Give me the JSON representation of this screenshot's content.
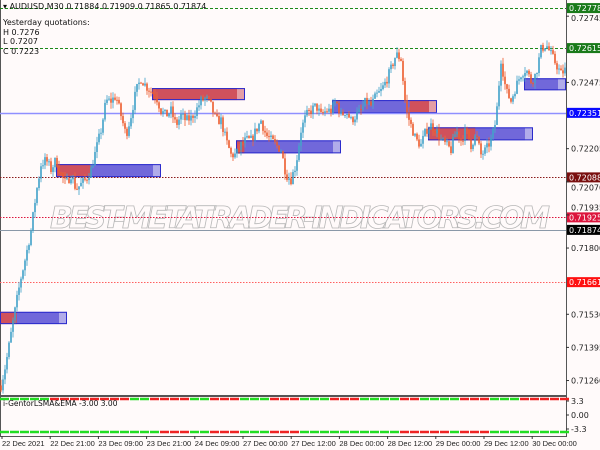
{
  "header": {
    "symbol": "AUDUSD,M30",
    "ohlc": "0.71884 0.71909 0.71865 0.71874"
  },
  "yesterday": {
    "title": "Yesterday quotations:",
    "h": "H 0.7276",
    "l": "L 0.7207",
    "c": "C 0.7223"
  },
  "watermark": "BEST-METATRADER-INDICATORS.COM",
  "colors": {
    "background": "#fffafa",
    "bull": "#3fa0c8",
    "bear": "#ec5a2c",
    "zone_red": "#d84040",
    "zone_blue": "#4b3fd0",
    "ind_up": "#22dd22",
    "ind_down": "#ee2222"
  },
  "chart_data": {
    "type": "candlestick",
    "timeframe": "M30",
    "ylim": [
      0.71201,
      0.72811
    ],
    "y_ticks": [
      "0.72745",
      "0.72475",
      "0.72205",
      "0.72070",
      "0.71935",
      "0.71800",
      "0.71530",
      "0.71395",
      "0.71260"
    ],
    "x_ticks": [
      "22 Dec 2021",
      "22 Dec 21:00",
      "23 Dec 09:00",
      "23 Dec 21:00",
      "24 Dec 09:00",
      "27 Dec 00:00",
      "27 Dec 12:00",
      "28 Dec 00:00",
      "28 Dec 12:00",
      "29 Dec 00:00",
      "29 Dec 12:00",
      "30 Dec 00:00"
    ],
    "bar_count": 283,
    "close_path": [
      0.7124,
      0.7133,
      0.7145,
      0.7157,
      0.7168,
      0.7177,
      0.7187,
      0.7202,
      0.7214,
      0.7216,
      0.7212,
      0.7216,
      0.721,
      0.7206,
      0.721,
      0.7204,
      0.7206,
      0.7208,
      0.7212,
      0.722,
      0.7228,
      0.724,
      0.724,
      0.7242,
      0.7234,
      0.7226,
      0.7234,
      0.7244,
      0.7249,
      0.7246,
      0.7244,
      0.7242,
      0.7236,
      0.7234,
      0.7236,
      0.723,
      0.7234,
      0.7232,
      0.7233,
      0.7236,
      0.724,
      0.7241,
      0.7238,
      0.7232,
      0.7232,
      0.7224,
      0.7218,
      0.7218,
      0.7222,
      0.7224,
      0.7224,
      0.7228,
      0.7232,
      0.7226,
      0.7224,
      0.7222,
      0.722,
      0.721,
      0.7208,
      0.7214,
      0.7228,
      0.7234,
      0.7236,
      0.7238,
      0.7234,
      0.7236,
      0.7236,
      0.724,
      0.7234,
      0.7236,
      0.7232,
      0.7234,
      0.7236,
      0.724,
      0.7238,
      0.7242,
      0.7244,
      0.7248,
      0.7253,
      0.7259,
      0.7257,
      0.7236,
      0.723,
      0.7224,
      0.7222,
      0.7228,
      0.723,
      0.7228,
      0.7224,
      0.7222,
      0.722,
      0.7228,
      0.7224,
      0.7228,
      0.7222,
      0.7226,
      0.7218,
      0.722,
      0.7224,
      0.7232,
      0.7257,
      0.7244,
      0.724,
      0.7246,
      0.7251,
      0.7253,
      0.7248,
      0.7251,
      0.7261,
      0.7263,
      0.7259,
      0.7255,
      0.7251,
      0.7253
    ],
    "levels": [
      {
        "price": "0.72778",
        "style": "dashed",
        "color": "#1a8a1a",
        "label_bg": "#1a7a1a"
      },
      {
        "price": "0.72615",
        "style": "dashed",
        "color": "#1a8a1a",
        "label_bg": "#1a7a1a"
      },
      {
        "price": "0.72351",
        "style": "solid",
        "color": "#8f8fff",
        "label_bg": "#0a0aff"
      },
      {
        "price": "0.72088",
        "style": "dotted",
        "color": "#8b1a1a",
        "label_bg": "#7a0f0f"
      },
      {
        "price": "0.71925",
        "style": "dotted",
        "color": "#dc143c",
        "label_bg": "#dc143c"
      },
      {
        "price": "0.71874",
        "style": "solid",
        "color": "#8a98a8",
        "label_bg": "#000000"
      },
      {
        "price": "0.71661",
        "style": "dotted",
        "color": "#ff6060",
        "label_bg": "#ff1010"
      }
    ],
    "zones": [
      {
        "from_bar": 0,
        "to_bar": 33,
        "high": 0.7154,
        "low": 0.7149,
        "red_from": 0,
        "red_to": 0.25
      },
      {
        "from_bar": 28,
        "to_bar": 80,
        "high": 0.72142,
        "low": 0.72089,
        "red_from": 0,
        "red_to": 0.33
      },
      {
        "from_bar": 76,
        "to_bar": 122,
        "high": 0.72452,
        "low": 0.72403,
        "red_from": 0,
        "red_to": 1
      },
      {
        "from_bar": 118,
        "to_bar": 170,
        "high": 0.72239,
        "low": 0.72186,
        "red_from": 0,
        "red_to": 0.08
      },
      {
        "from_bar": 166,
        "to_bar": 218,
        "high": 0.72403,
        "low": 0.7235,
        "red_from": 0.74,
        "red_to": 1
      },
      {
        "from_bar": 214,
        "to_bar": 266,
        "high": 0.72292,
        "low": 0.72239,
        "red_from": 0,
        "red_to": 0.45
      },
      {
        "from_bar": 262,
        "to_bar": 283,
        "high": 0.72492,
        "low": 0.72443,
        "red_from": 0,
        "red_to": 0
      }
    ]
  },
  "indicator": {
    "label": "i-GentorLSMA&EMA -3.00 3.00",
    "y_ticks": [
      "3.3",
      "0.00",
      "-3.3"
    ],
    "top_states": "GGGGGRRRRRRRRGGRRRRGGRRRGGGRRRGGGRRRGGGGRRGGGGRRRGGGRRRRR",
    "bottom_states": "GGGGGGGGGGGGGGGGRRRGGRRRGGGRRRGGGGGGGGGGRRRRRGRRRGGGGGGGG"
  }
}
